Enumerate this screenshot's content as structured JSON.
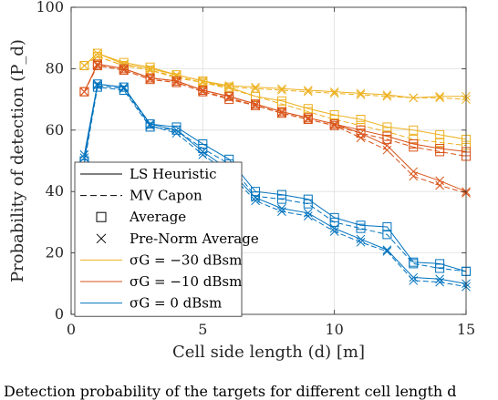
{
  "chart_data": {
    "type": "line",
    "title": "",
    "xlabel": "Cell side length (d) [m]",
    "ylabel": "Probability of detection (P_d)",
    "xlim": [
      0,
      15
    ],
    "ylim": [
      0,
      100
    ],
    "xticks": [
      0,
      5,
      10,
      15
    ],
    "yticks": [
      0,
      20,
      40,
      60,
      80,
      100
    ],
    "grid": true,
    "legend_position": "lower-left",
    "legend": [
      {
        "label": "LS Heuristic",
        "line": "solid",
        "marker": "none",
        "color": "#000000"
      },
      {
        "label": "MV Capon",
        "line": "dashed",
        "marker": "none",
        "color": "#000000"
      },
      {
        "label": "Average",
        "line": "none",
        "marker": "square",
        "color": "#000000"
      },
      {
        "label": "Pre-Norm Average",
        "line": "none",
        "marker": "x",
        "color": "#000000"
      },
      {
        "label": "σG = −30 dBsm",
        "line": "solid",
        "marker": "none",
        "color": "#EDB120"
      },
      {
        "label": "σG = −10 dBsm",
        "line": "solid",
        "marker": "none",
        "color": "#D95319"
      },
      {
        "label": "σG = 0 dBsm",
        "line": "solid",
        "marker": "none",
        "color": "#0072BD"
      }
    ],
    "x": [
      0.5,
      1,
      2,
      3,
      4,
      5,
      6,
      7,
      8,
      9,
      10,
      11,
      12,
      13,
      14,
      15
    ],
    "series": [
      {
        "name": "σG = −30 dBsm, LS Heuristic, Average",
        "color": "#EDB120",
        "line": "solid",
        "marker": "square",
        "values": [
          81,
          85,
          82,
          80.5,
          78,
          76,
          74,
          71,
          69.5,
          67,
          65,
          63.5,
          61,
          60,
          58.5,
          57
        ]
      },
      {
        "name": "σG = −30 dBsm, MV Capon, Average",
        "color": "#EDB120",
        "line": "dashed",
        "marker": "square",
        "values": [
          81,
          84,
          81,
          79.5,
          77,
          75.5,
          73.5,
          71,
          68.5,
          66,
          63.5,
          61.5,
          59.5,
          57,
          56,
          55
        ]
      },
      {
        "name": "σG = −30 dBsm, LS Heuristic, Pre-Norm Average",
        "color": "#EDB120",
        "line": "solid",
        "marker": "x",
        "values": [
          81,
          85,
          81.5,
          80,
          78,
          76,
          74.5,
          74,
          73.5,
          73,
          72.5,
          72,
          71.5,
          70.5,
          71,
          71
        ]
      },
      {
        "name": "σG = −30 dBsm, MV Capon, Pre-Norm Average",
        "color": "#EDB120",
        "line": "dashed",
        "marker": "x",
        "values": [
          81,
          84,
          81,
          79.5,
          77.5,
          75.5,
          74,
          73.5,
          73,
          72.5,
          72,
          71.5,
          71,
          70.5,
          70.5,
          70
        ]
      },
      {
        "name": "σG = −10 dBsm, LS Heuristic, Average",
        "color": "#D95319",
        "line": "solid",
        "marker": "square",
        "values": [
          72.5,
          81.5,
          80,
          77,
          76,
          73,
          71,
          68.5,
          66,
          64,
          62,
          60,
          58,
          55.5,
          54,
          53
        ]
      },
      {
        "name": "σG = −10 dBsm, MV Capon, Average",
        "color": "#D95319",
        "line": "dashed",
        "marker": "square",
        "values": [
          72.5,
          81,
          79.5,
          76.5,
          75.5,
          72.5,
          70,
          68,
          65.5,
          63.5,
          61.5,
          59,
          57,
          54.5,
          53,
          51.5
        ]
      },
      {
        "name": "σG = −10 dBsm, LS Heuristic, Pre-Norm Average",
        "color": "#D95319",
        "line": "solid",
        "marker": "x",
        "values": [
          72.5,
          81.5,
          80,
          77,
          76,
          73,
          71,
          68.5,
          66,
          64,
          62,
          59,
          55,
          46.5,
          43.5,
          40
        ]
      },
      {
        "name": "σG = −10 dBsm, MV Capon, Pre-Norm Average",
        "color": "#D95319",
        "line": "dashed",
        "marker": "x",
        "values": [
          72.5,
          81,
          79.5,
          76.5,
          75.5,
          72.5,
          70.5,
          68,
          65.5,
          63.5,
          61.5,
          57.5,
          53.5,
          45,
          42,
          39.5
        ]
      },
      {
        "name": "σG = 0 dBsm, LS Heuristic, Average",
        "color": "#0072BD",
        "line": "solid",
        "marker": "square",
        "values": [
          50,
          75,
          74,
          62,
          61,
          55.5,
          50.5,
          40,
          39,
          37.5,
          31.5,
          29,
          28.5,
          17,
          16.5,
          14
        ]
      },
      {
        "name": "σG = 0 dBsm, MV Capon, Average",
        "color": "#0072BD",
        "line": "dashed",
        "marker": "square",
        "values": [
          49,
          74,
          73,
          61,
          60,
          54,
          49,
          38.5,
          37.5,
          36,
          30,
          28,
          26,
          16.5,
          15,
          14
        ]
      },
      {
        "name": "σG = 0 dBsm, LS Heuristic, Pre-Norm Average",
        "color": "#0072BD",
        "line": "solid",
        "marker": "x",
        "values": [
          52,
          75,
          74,
          62,
          60,
          53,
          47,
          38,
          34.5,
          33,
          28,
          24.5,
          21,
          12,
          11.5,
          10
        ]
      },
      {
        "name": "σG = 0 dBsm, MV Capon, Pre-Norm Average",
        "color": "#0072BD",
        "line": "dashed",
        "marker": "x",
        "values": [
          51,
          74.5,
          73.5,
          61.5,
          59,
          52,
          46,
          37,
          33.5,
          32,
          27,
          23.5,
          20.5,
          11,
          10.5,
          9
        ]
      }
    ]
  },
  "caption": "Detection probability of the targets for different cell length d"
}
